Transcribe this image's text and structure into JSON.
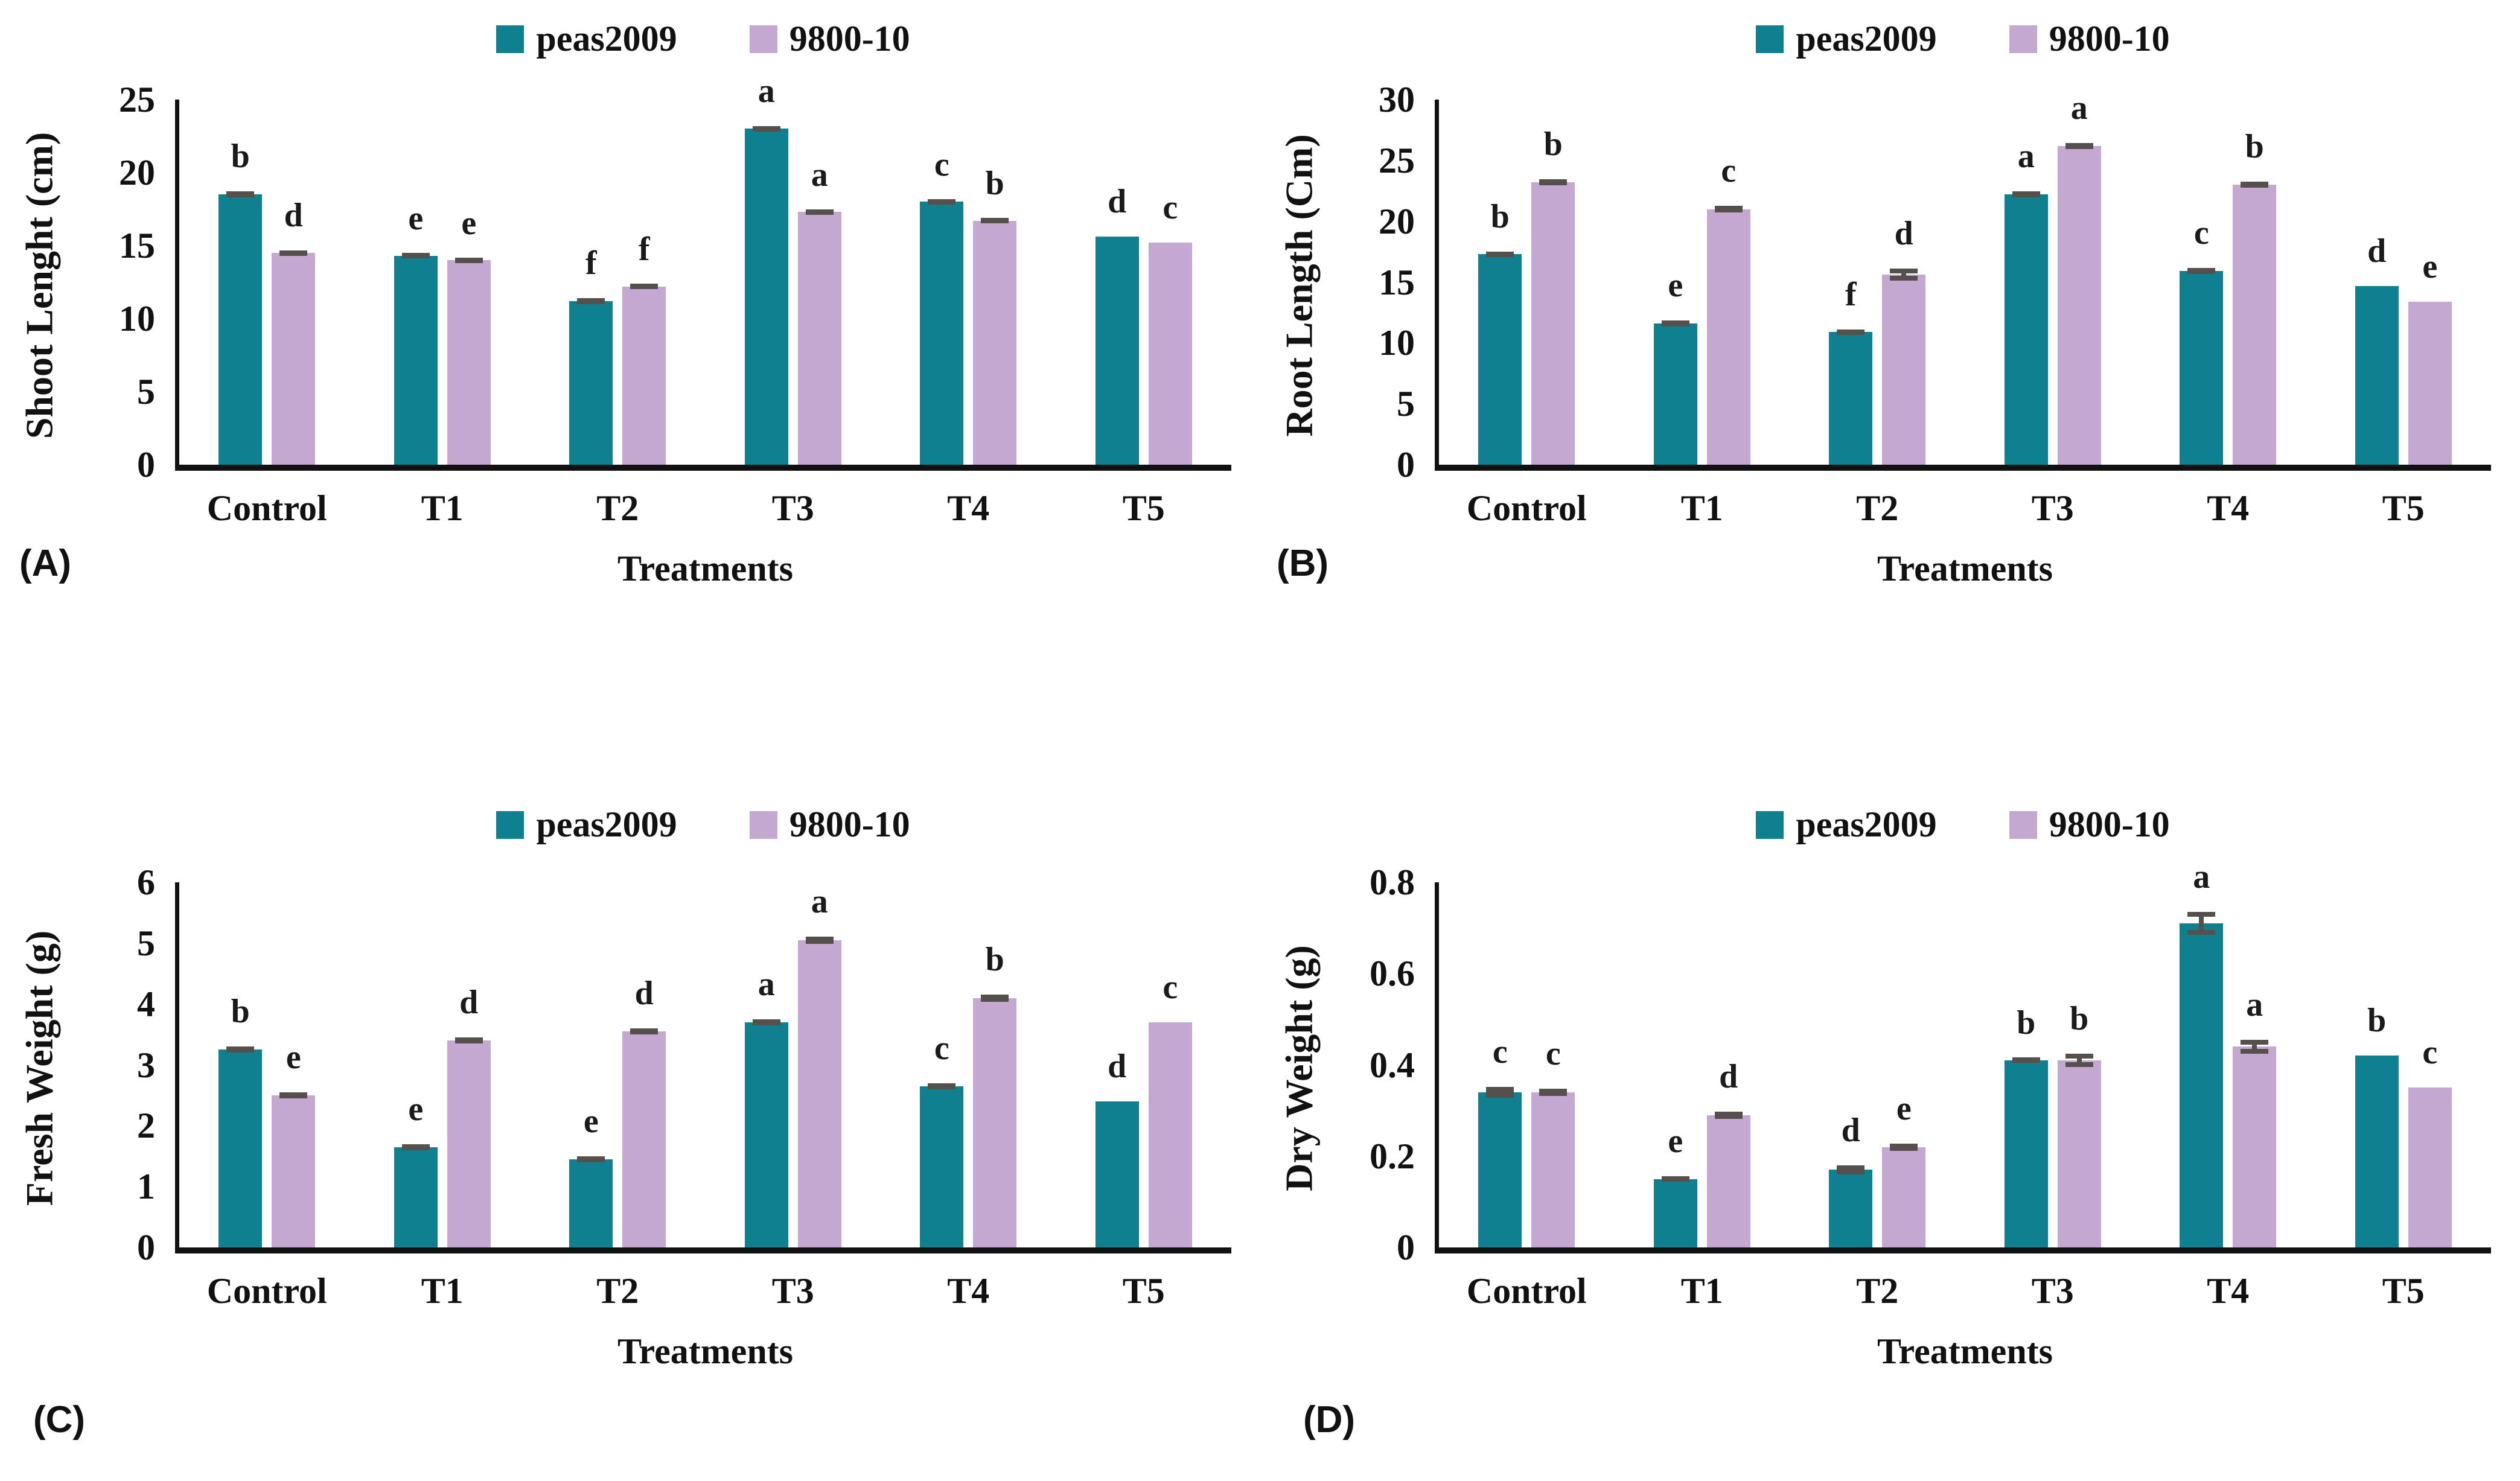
{
  "figure": {
    "background": "#ffffff",
    "colors": {
      "series": [
        "#0e808f",
        "#c4a8d2"
      ],
      "error_bar": "#55504c",
      "axis": "#111111",
      "text": "#111111"
    }
  },
  "chart_data": [
    {
      "id": "A",
      "panel_label": "(A)",
      "type": "bar",
      "ylabel": "Shoot Lenght (cm)",
      "xlabel": "Treatments",
      "categories": [
        "Control",
        "T1",
        "T2",
        "T3",
        "T4",
        "T5"
      ],
      "ylim": [
        0,
        25
      ],
      "yticks": [
        "0",
        "5",
        "10",
        "15",
        "20",
        "25"
      ],
      "grid": false,
      "legend_position": "top-center",
      "series": [
        {
          "name": "peas2009",
          "values": [
            18.5,
            14.3,
            11.2,
            23.0,
            18.0,
            15.6
          ],
          "errors": [
            0.2,
            0.15,
            0.2,
            0.2,
            0.15,
            0
          ],
          "letters": [
            "b",
            "e",
            "f",
            "a",
            "c",
            "d"
          ]
        },
        {
          "name": "9800-10",
          "values": [
            14.5,
            14.0,
            12.2,
            17.3,
            16.7,
            15.2
          ],
          "errors": [
            0.15,
            0.15,
            0.15,
            0.15,
            0.15,
            0
          ],
          "letters": [
            "d",
            "e",
            "f",
            "a",
            "b",
            "c"
          ]
        }
      ]
    },
    {
      "id": "B",
      "panel_label": "(B)",
      "type": "bar",
      "ylabel": "Root Length (Cm)",
      "xlabel": "Treatments",
      "categories": [
        "Control",
        "T1",
        "T2",
        "T3",
        "T4",
        "T5"
      ],
      "ylim": [
        0,
        30
      ],
      "yticks": [
        "0",
        "5",
        "10",
        "15",
        "20",
        "25",
        "30"
      ],
      "grid": false,
      "legend_position": "top-center",
      "series": [
        {
          "name": "peas2009",
          "values": [
            17.3,
            11.6,
            10.9,
            22.2,
            15.9,
            14.7
          ],
          "errors": [
            0.2,
            0.25,
            0.2,
            0.25,
            0.25,
            0
          ],
          "letters": [
            "b",
            "e",
            "f",
            "a",
            "c",
            "d"
          ]
        },
        {
          "name": "9800-10",
          "values": [
            23.2,
            21.0,
            15.6,
            26.2,
            23.0,
            13.4
          ],
          "errors": [
            0.25,
            0.25,
            0.5,
            0.25,
            0.25,
            0
          ],
          "letters": [
            "b",
            "c",
            "d",
            "a",
            "b",
            "e"
          ]
        }
      ]
    },
    {
      "id": "C",
      "panel_label": "(C)",
      "type": "bar",
      "ylabel": "Fresh Weight (g)",
      "xlabel": "Treatments",
      "categories": [
        "Control",
        "T1",
        "T2",
        "T3",
        "T4",
        "T5"
      ],
      "ylim": [
        0,
        6
      ],
      "yticks": [
        "0",
        "1",
        "2",
        "3",
        "4",
        "5",
        "6"
      ],
      "grid": false,
      "legend_position": "top-center",
      "series": [
        {
          "name": "peas2009",
          "values": [
            3.25,
            1.65,
            1.45,
            3.7,
            2.65,
            2.4
          ],
          "errors": [
            0.05,
            0.05,
            0.05,
            0.05,
            0.05,
            0
          ],
          "letters": [
            "b",
            "e",
            "e",
            "a",
            "c",
            "d"
          ]
        },
        {
          "name": "9800-10",
          "values": [
            2.5,
            3.4,
            3.55,
            5.05,
            4.1,
            3.7
          ],
          "errors": [
            0.05,
            0.05,
            0.05,
            0.06,
            0.06,
            0
          ],
          "letters": [
            "e",
            "d",
            "d",
            "a",
            "b",
            "c"
          ]
        }
      ]
    },
    {
      "id": "D",
      "panel_label": "(D)",
      "type": "bar",
      "ylabel": "Dry Weight (g)",
      "xlabel": "Treatments",
      "categories": [
        "Control",
        "T1",
        "T2",
        "T3",
        "T4",
        "T5"
      ],
      "ylim": [
        0,
        0.8
      ],
      "yticks": [
        "0",
        "0.2",
        "0.4",
        "0.6",
        "0.8"
      ],
      "grid": false,
      "legend_position": "top-center",
      "series": [
        {
          "name": "peas2009",
          "values": [
            0.34,
            0.15,
            0.17,
            0.41,
            0.71,
            0.42
          ],
          "errors": [
            0.012,
            0.006,
            0.01,
            0.005,
            0.025,
            0
          ],
          "letters": [
            "c",
            "e",
            "d",
            "b",
            "a",
            "b"
          ]
        },
        {
          "name": "9800-10",
          "values": [
            0.34,
            0.29,
            0.22,
            0.41,
            0.44,
            0.35
          ],
          "errors": [
            0.008,
            0.008,
            0.008,
            0.015,
            0.015,
            0
          ],
          "letters": [
            "c",
            "d",
            "e",
            "b",
            "a",
            "c"
          ]
        }
      ]
    }
  ]
}
